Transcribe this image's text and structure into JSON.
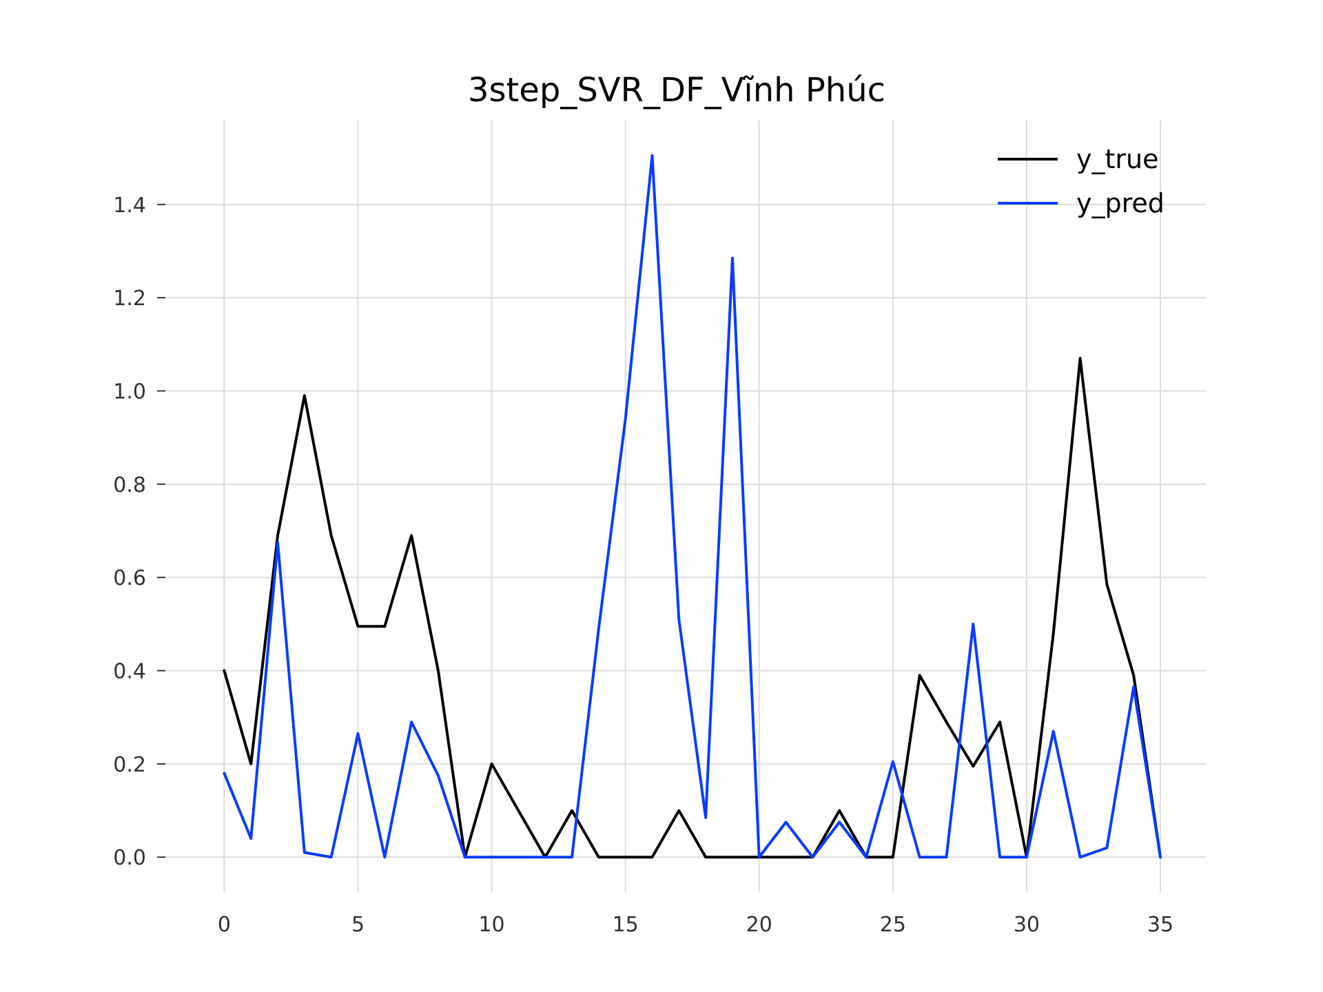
{
  "chart_data": {
    "type": "line",
    "title": "3step_SVR_DF_Vĩnh Phúc",
    "xlabel": "",
    "ylabel": "",
    "xlim": [
      -2.2,
      36.7
    ],
    "ylim": [
      -0.075,
      1.58
    ],
    "x_ticks": [
      0,
      5,
      10,
      15,
      20,
      25,
      30,
      35
    ],
    "y_ticks": [
      0.0,
      0.2,
      0.4,
      0.6,
      0.8,
      1.0,
      1.2,
      1.4
    ],
    "y_tick_labels": [
      "0.0",
      "0.2",
      "0.4",
      "0.6",
      "0.8",
      "1.0",
      "1.2",
      "1.4"
    ],
    "grid": true,
    "legend": "top-right",
    "x": [
      0,
      1,
      2,
      3,
      4,
      5,
      6,
      7,
      8,
      9,
      10,
      11,
      12,
      13,
      14,
      15,
      16,
      17,
      18,
      19,
      20,
      21,
      22,
      23,
      24,
      25,
      26,
      27,
      28,
      29,
      30,
      31,
      32,
      33,
      34,
      35
    ],
    "series": [
      {
        "name": "y_true",
        "color": "#000000",
        "values": [
          0.4,
          0.2,
          0.69,
          0.99,
          0.69,
          0.495,
          0.495,
          0.69,
          0.4,
          0.0,
          0.2,
          0.1,
          0.0,
          0.1,
          0.0,
          0.0,
          0.0,
          0.1,
          0.0,
          0.0,
          0.0,
          0.0,
          0.0,
          0.1,
          0.0,
          0.0,
          0.39,
          0.29,
          0.195,
          0.29,
          0.0,
          0.48,
          1.07,
          0.585,
          0.39,
          0.0
        ]
      },
      {
        "name": "y_pred",
        "color": "#0a3cff",
        "values": [
          0.18,
          0.04,
          0.675,
          0.01,
          0.0,
          0.265,
          0.0,
          0.29,
          0.175,
          0.0,
          0.0,
          0.0,
          0.0,
          0.0,
          0.49,
          0.94,
          1.505,
          0.51,
          0.085,
          1.285,
          0.0,
          0.075,
          0.0,
          0.075,
          0.0,
          0.205,
          0.0,
          0.0,
          0.5,
          0.0,
          0.0,
          0.27,
          0.0,
          0.02,
          0.365,
          0.0
        ]
      }
    ]
  }
}
